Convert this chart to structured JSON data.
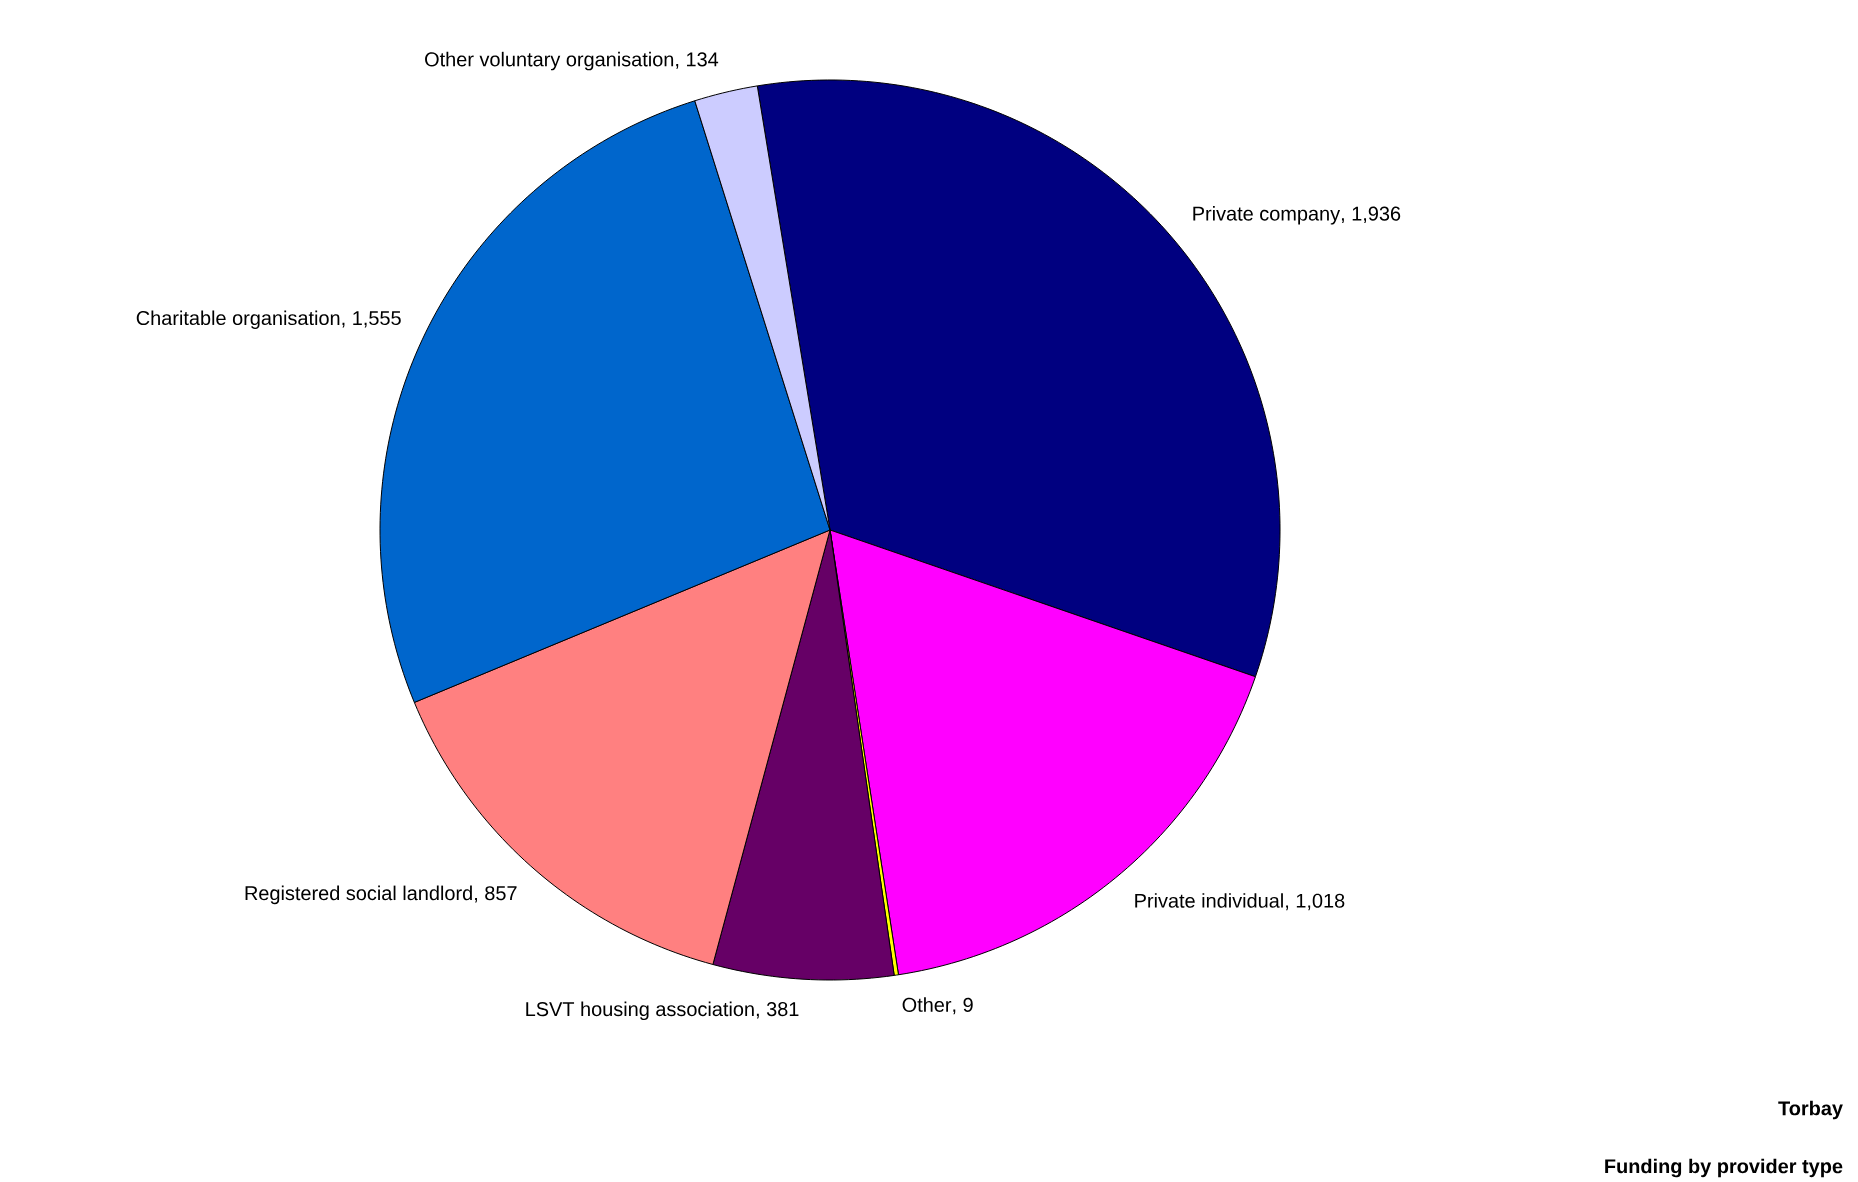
{
  "chart_data": {
    "type": "pie",
    "title": "Torbay",
    "subtitle": "Funding by provider type",
    "categories": [
      "Private company",
      "Private individual",
      "Other",
      "LSVT housing association",
      "Registered social landlord",
      "Charitable organisation",
      "Other voluntary organisation"
    ],
    "values": [
      1936,
      1018,
      9,
      381,
      857,
      1555,
      134
    ],
    "colors": [
      "#000080",
      "#ff00ff",
      "#ffff00",
      "#660066",
      "#ff8080",
      "#0066cc",
      "#ccccff"
    ],
    "value_labels": [
      ", 1,936",
      ", 1,018",
      ", 9",
      ", 381",
      ", 857",
      ", 1,555",
      ", 134"
    ]
  }
}
